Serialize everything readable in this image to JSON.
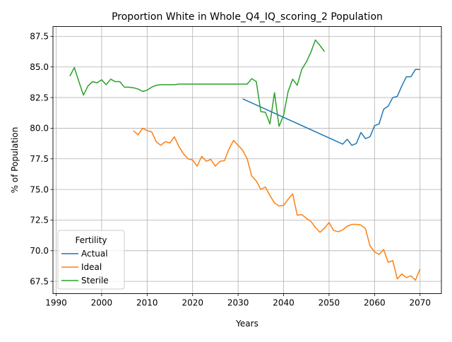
{
  "chart_data": {
    "type": "line",
    "title": "Proportion White in Whole_Q4_IQ_scoring_2 Population",
    "xlabel": "Years",
    "ylabel": "% of Population",
    "xlim": [
      1989.3,
      2074.7
    ],
    "ylim": [
      66.5,
      88.3
    ],
    "xticks": [
      1990,
      2000,
      2010,
      2020,
      2030,
      2040,
      2050,
      2060,
      2070
    ],
    "yticks": [
      67.5,
      70.0,
      72.5,
      75.0,
      77.5,
      80.0,
      82.5,
      85.0,
      87.5
    ],
    "grid": true,
    "legend": {
      "title": "Fertility",
      "placement": "lower-left"
    },
    "series": [
      {
        "name": "Actual",
        "color": "#1f77b4",
        "x": [
          2031,
          2053,
          2054,
          2055,
          2056,
          2057,
          2058,
          2059,
          2060,
          2061,
          2062,
          2063,
          2064,
          2065,
          2066,
          2067,
          2068,
          2069,
          2070
        ],
        "y": [
          82.4,
          78.7,
          79.1,
          78.6,
          78.75,
          79.65,
          79.15,
          79.3,
          80.2,
          80.35,
          81.55,
          81.8,
          82.5,
          82.6,
          83.45,
          84.2,
          84.2,
          84.8,
          84.8
        ]
      },
      {
        "name": "Ideal",
        "color": "#ff7f0e",
        "x": [
          2007,
          2008,
          2009,
          2010,
          2011,
          2012,
          2013,
          2014,
          2015,
          2016,
          2017,
          2018,
          2019,
          2020,
          2021,
          2022,
          2023,
          2024,
          2025,
          2026,
          2027,
          2028,
          2029,
          2030,
          2031,
          2032,
          2033,
          2034,
          2035,
          2036,
          2037,
          2038,
          2039,
          2040,
          2041,
          2042,
          2043,
          2044,
          2045,
          2046,
          2047,
          2048,
          2049,
          2050,
          2051,
          2052,
          2053,
          2054,
          2055,
          2056,
          2057,
          2058,
          2059,
          2060,
          2061,
          2062,
          2063,
          2064,
          2065,
          2066,
          2067,
          2068,
          2069,
          2070
        ],
        "y": [
          79.8,
          79.45,
          80.0,
          79.8,
          79.7,
          78.9,
          78.6,
          78.9,
          78.8,
          79.3,
          78.5,
          77.9,
          77.5,
          77.4,
          76.9,
          77.7,
          77.3,
          77.45,
          76.9,
          77.3,
          77.35,
          78.3,
          79.0,
          78.6,
          78.2,
          77.5,
          76.1,
          75.7,
          75.0,
          75.2,
          74.5,
          73.9,
          73.65,
          73.7,
          74.2,
          74.65,
          72.9,
          72.95,
          72.65,
          72.4,
          71.9,
          71.5,
          71.85,
          72.3,
          71.65,
          71.55,
          71.7,
          72.0,
          72.15,
          72.15,
          72.1,
          71.8,
          70.4,
          69.9,
          69.7,
          70.1,
          69.05,
          69.2,
          67.7,
          68.1,
          67.8,
          67.95,
          67.6,
          68.5
        ]
      },
      {
        "name": "Sterile",
        "color": "#2ca02c",
        "x": [
          1993,
          1994,
          1995,
          1996,
          1997,
          1998,
          1999,
          2000,
          2001,
          2002,
          2003,
          2004,
          2005,
          2006,
          2007,
          2008,
          2009,
          2010,
          2011,
          2012,
          2013,
          2014,
          2015,
          2016,
          2017,
          2018,
          2019,
          2020,
          2021,
          2022,
          2023,
          2024,
          2025,
          2026,
          2027,
          2028,
          2029,
          2030,
          2031,
          2032,
          2033,
          2034,
          2035,
          2036,
          2037,
          2038,
          2039,
          2040,
          2041,
          2042,
          2043,
          2044,
          2045,
          2046,
          2047,
          2048,
          2049
        ],
        "y": [
          84.25,
          84.95,
          83.8,
          82.7,
          83.45,
          83.8,
          83.7,
          83.95,
          83.55,
          84.0,
          83.8,
          83.8,
          83.35,
          83.35,
          83.3,
          83.2,
          83.0,
          83.1,
          83.35,
          83.5,
          83.55,
          83.55,
          83.55,
          83.55,
          83.6,
          83.6,
          83.6,
          83.6,
          83.6,
          83.6,
          83.6,
          83.6,
          83.6,
          83.6,
          83.6,
          83.6,
          83.6,
          83.6,
          83.6,
          83.6,
          84.05,
          83.8,
          81.35,
          81.3,
          80.35,
          82.9,
          80.15,
          81.05,
          83.0,
          84.0,
          83.5,
          84.8,
          85.4,
          86.2,
          87.2,
          86.75,
          86.25
        ]
      }
    ]
  }
}
